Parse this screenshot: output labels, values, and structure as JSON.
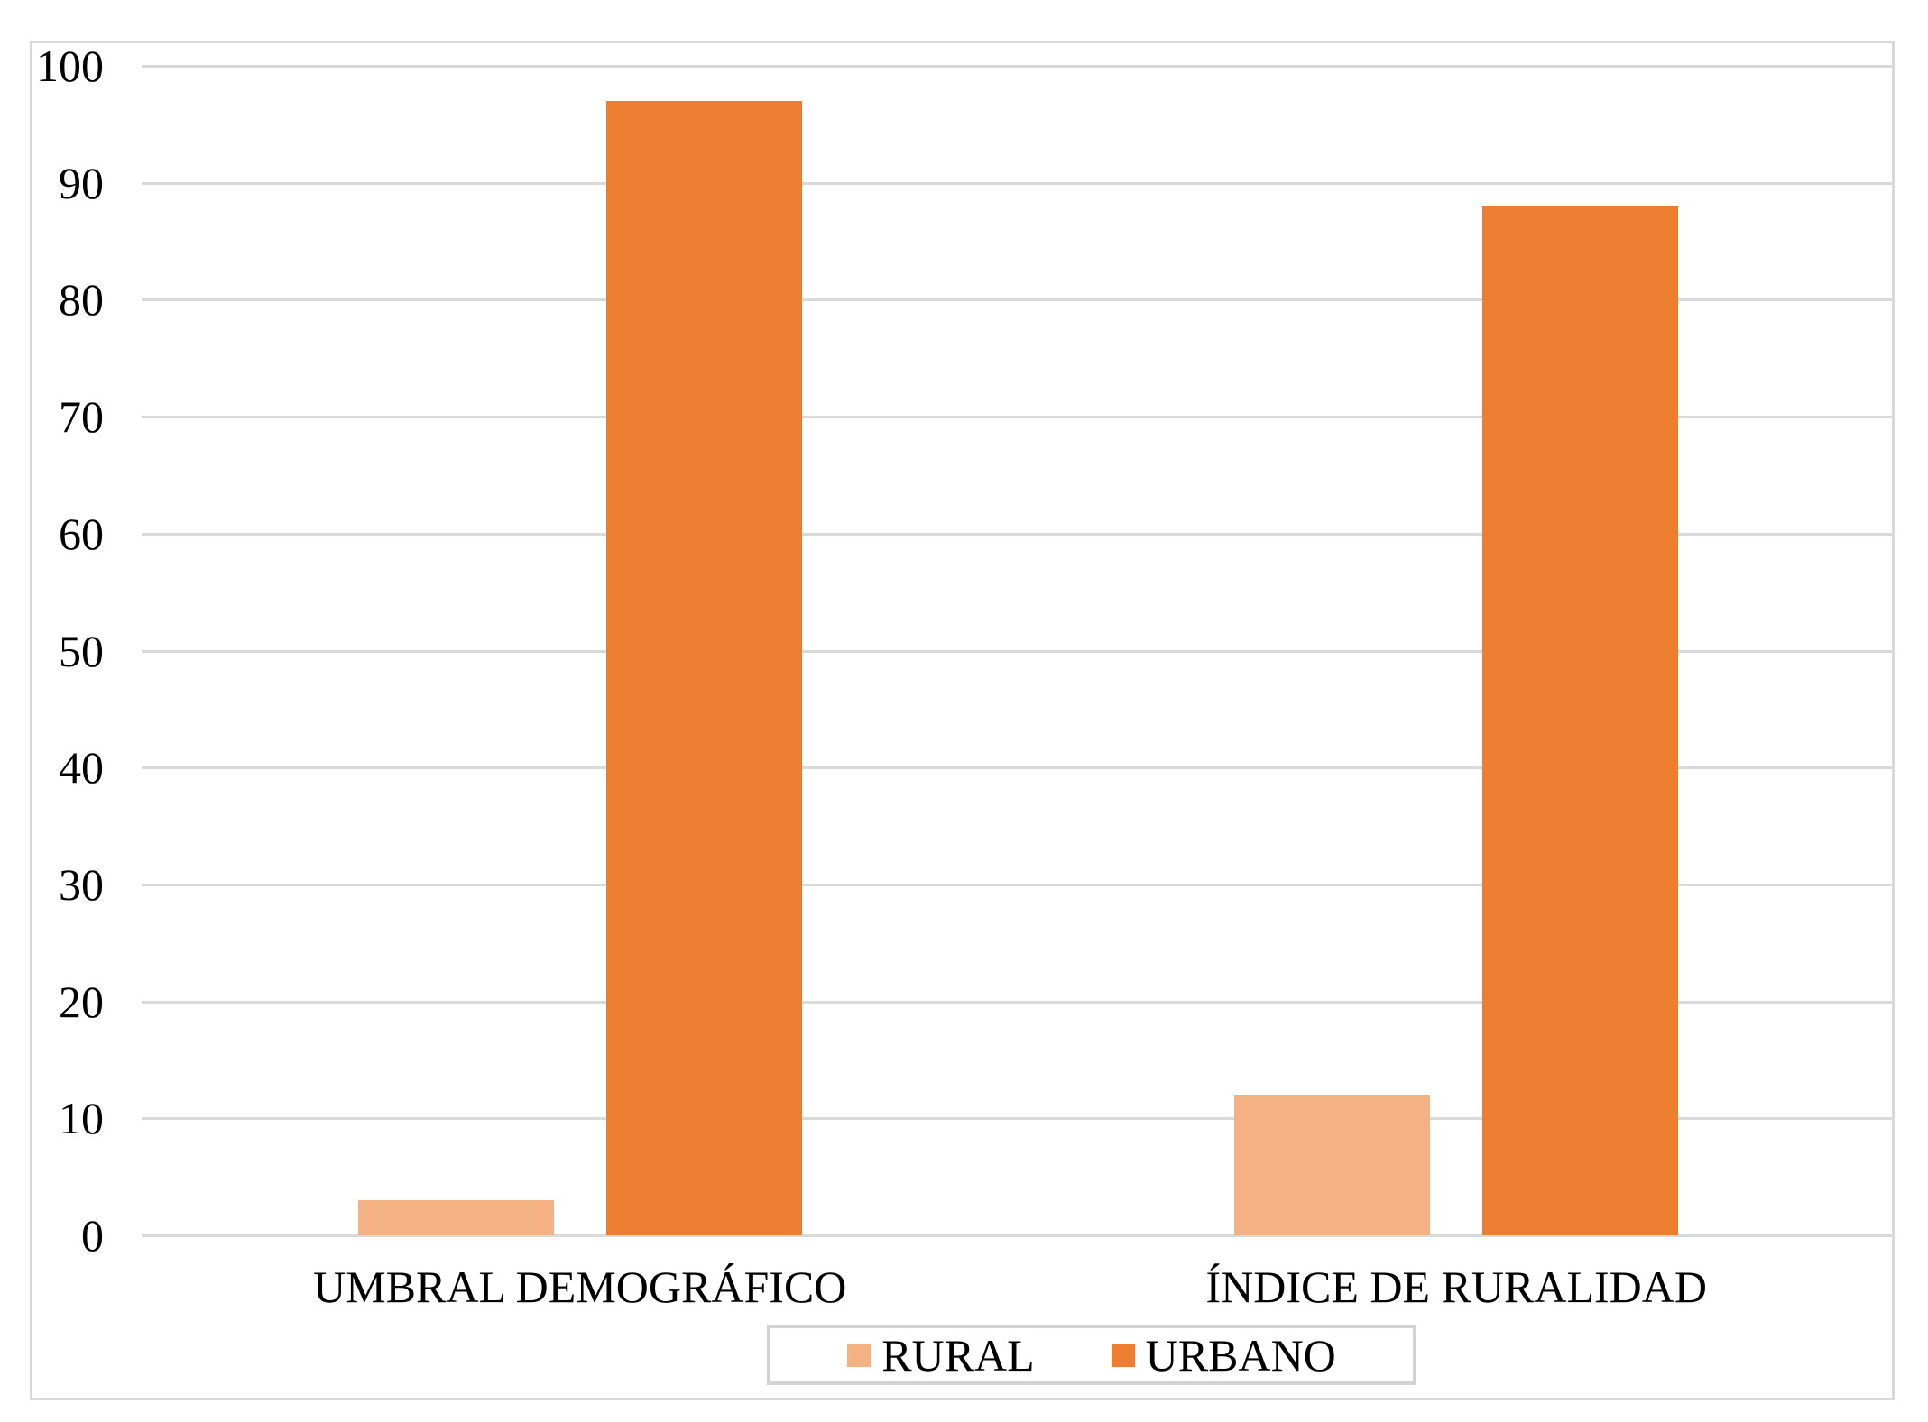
{
  "chart_data": {
    "type": "bar",
    "title": "",
    "xlabel": "",
    "ylabel": "",
    "categories": [
      "UMBRAL DEMOGRÁFICO",
      "ÍNDICE DE RURALIDAD"
    ],
    "series": [
      {
        "name": "RURAL",
        "color": "#F4B183",
        "values": [
          3,
          12
        ]
      },
      {
        "name": "URBANO",
        "color": "#ED7D31",
        "values": [
          97,
          88
        ]
      }
    ],
    "ylim": [
      0,
      100
    ],
    "yticks": [
      0,
      10,
      20,
      30,
      40,
      50,
      60,
      70,
      80,
      90,
      100
    ],
    "grid": true,
    "legend_position": "bottom"
  },
  "colors": {
    "background": "#FFFFFF",
    "gridline": "#D9D9D9",
    "chart_border": "#D9D9D9",
    "legend_border": "#D2D2D2",
    "text": "#000000",
    "series_rural": "#F4B183",
    "series_urbano": "#ED7D31"
  }
}
